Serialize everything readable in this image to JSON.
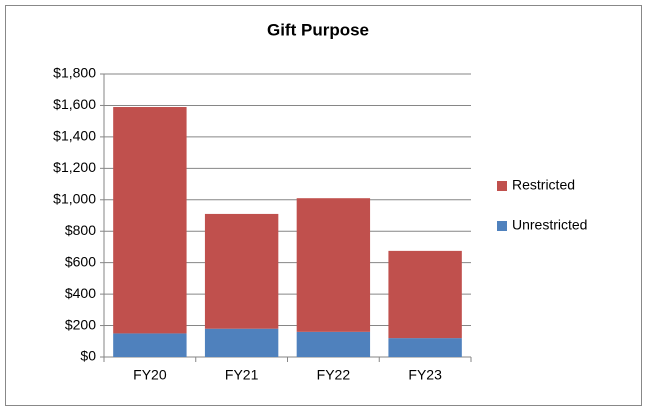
{
  "chart_data": {
    "type": "stacked_bar",
    "title": "Gift Purpose",
    "categories": [
      "FY20",
      "FY21",
      "FY22",
      "FY23"
    ],
    "series": [
      {
        "name": "Unrestricted",
        "color": "#4f81bd",
        "values": [
          150,
          180,
          160,
          120
        ]
      },
      {
        "name": "Restricted",
        "color": "#c0504d",
        "values": [
          1440,
          730,
          850,
          555
        ]
      }
    ],
    "ylim": [
      0,
      1800
    ],
    "yticks": [
      {
        "value": 0,
        "label": "$0"
      },
      {
        "value": 200,
        "label": "$200"
      },
      {
        "value": 400,
        "label": "$400"
      },
      {
        "value": 600,
        "label": "$600"
      },
      {
        "value": 800,
        "label": "$800"
      },
      {
        "value": 1000,
        "label": "$1,000"
      },
      {
        "value": 1200,
        "label": "$1,200"
      },
      {
        "value": 1400,
        "label": "$1,400"
      },
      {
        "value": 1600,
        "label": "$1,600"
      },
      {
        "value": 1800,
        "label": "$1,800"
      }
    ],
    "grid": true,
    "legend": "right"
  }
}
